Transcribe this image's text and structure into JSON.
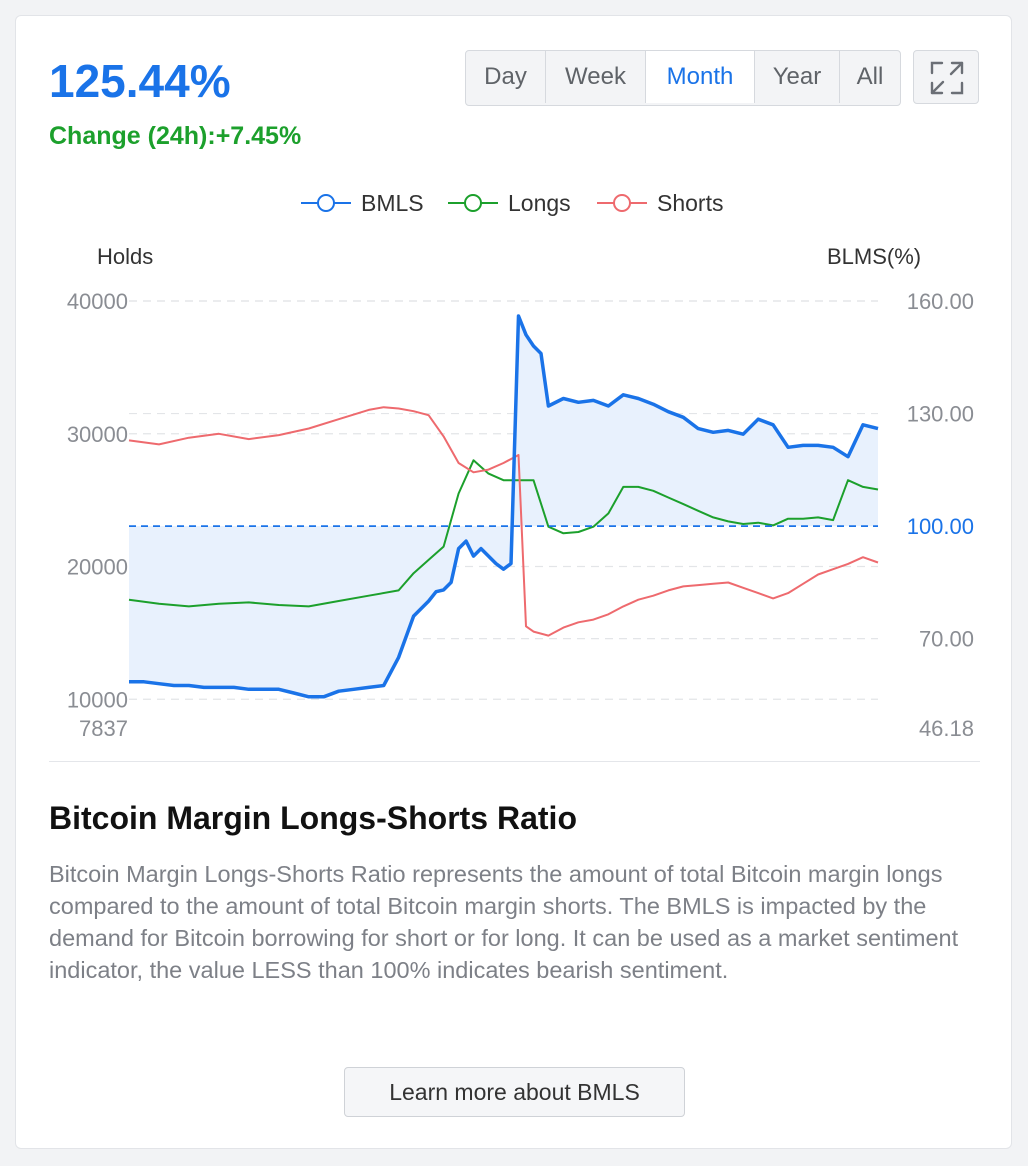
{
  "header": {
    "value": "125.44%",
    "change_label": "Change (24h):",
    "change_value": "+7.45%"
  },
  "range_buttons": [
    {
      "label": "Day",
      "active": false
    },
    {
      "label": "Week",
      "active": false
    },
    {
      "label": "Month",
      "active": true
    },
    {
      "label": "Year",
      "active": false
    },
    {
      "label": "All",
      "active": false
    }
  ],
  "colors": {
    "bmls": "#1a73e8",
    "longs": "#1ca02c",
    "shorts": "#ee6a6e",
    "accent": "#1a73e8",
    "area_fill": "#e8f1fd"
  },
  "icons": {
    "expand": "expand-arrows-icon"
  },
  "chart_data": {
    "type": "line",
    "legend": [
      "BMLS",
      "Longs",
      "Shorts"
    ],
    "legend_position": "top",
    "left_axis_title": "Holds",
    "right_axis_title": "BLMS(%)",
    "left_ticks": [
      "40000",
      "30000",
      "20000",
      "10000",
      "7837"
    ],
    "right_ticks": [
      "160.00",
      "130.00",
      "100.00",
      "70.00",
      "46.18"
    ],
    "left_range": [
      7837,
      40000
    ],
    "right_range": [
      46.18,
      160.0
    ],
    "reference_value": 100.0,
    "reference_label": "100.00",
    "grid": true,
    "series": [
      {
        "name": "BMLS",
        "axis": "right",
        "x": [
          0,
          2,
          4,
          6,
          8,
          10,
          12,
          14,
          16,
          18,
          20,
          22,
          24,
          26,
          28,
          30,
          32,
          34,
          36,
          38,
          40,
          41,
          42,
          43,
          44,
          45,
          46,
          47,
          48,
          49,
          50,
          51,
          52,
          53,
          54,
          55,
          56,
          58,
          60,
          62,
          64,
          66,
          68,
          70,
          72,
          74,
          76,
          78,
          80,
          82,
          84,
          86,
          88,
          90,
          92,
          94,
          96,
          98,
          100
        ],
        "values": [
          58.5,
          58.5,
          58.0,
          57.5,
          57.5,
          57.0,
          57.0,
          57.0,
          56.5,
          56.5,
          56.5,
          55.5,
          54.5,
          54.5,
          56.0,
          56.5,
          57.0,
          57.5,
          65.0,
          76.0,
          80.0,
          82.5,
          83.0,
          85.0,
          94.0,
          96.0,
          92.0,
          94.0,
          92.0,
          90.0,
          88.5,
          90.0,
          156.0,
          151.0,
          148.0,
          146.0,
          132.0,
          134.0,
          133.0,
          133.5,
          132.0,
          135.0,
          134.0,
          132.5,
          130.5,
          129.0,
          126.0,
          125.0,
          125.5,
          124.5,
          128.5,
          127.0,
          121.0,
          121.5,
          121.5,
          121.0,
          118.5,
          127.0,
          126.0
        ]
      },
      {
        "name": "Longs",
        "axis": "left",
        "x": [
          0,
          4,
          8,
          12,
          16,
          20,
          24,
          28,
          32,
          36,
          38,
          40,
          42,
          44,
          46,
          48,
          50,
          52,
          54,
          56,
          58,
          60,
          62,
          64,
          66,
          68,
          70,
          72,
          74,
          76,
          78,
          80,
          82,
          84,
          86,
          88,
          90,
          92,
          94,
          96,
          98,
          100
        ],
        "values": [
          17500,
          17200,
          17000,
          17200,
          17300,
          17100,
          17000,
          17400,
          17800,
          18200,
          19500,
          20500,
          21500,
          25500,
          28000,
          27000,
          26500,
          26500,
          26500,
          23000,
          22500,
          22600,
          23000,
          24000,
          26000,
          26000,
          25700,
          25200,
          24700,
          24200,
          23700,
          23400,
          23200,
          23300,
          23100,
          23600,
          23600,
          23700,
          23500,
          26500,
          26000,
          25800
        ]
      },
      {
        "name": "Shorts",
        "axis": "left",
        "x": [
          0,
          4,
          8,
          12,
          16,
          20,
          24,
          28,
          32,
          34,
          36,
          38,
          40,
          42,
          44,
          46,
          48,
          50,
          52,
          53,
          54,
          56,
          58,
          60,
          62,
          64,
          66,
          68,
          70,
          72,
          74,
          76,
          78,
          80,
          82,
          84,
          86,
          88,
          90,
          92,
          94,
          96,
          98,
          100
        ],
        "values": [
          29500,
          29200,
          29700,
          30000,
          29600,
          29900,
          30400,
          31100,
          31800,
          32000,
          31900,
          31700,
          31400,
          29800,
          27800,
          27100,
          27300,
          27800,
          28400,
          15500,
          15100,
          14800,
          15400,
          15800,
          16000,
          16400,
          17000,
          17500,
          17800,
          18200,
          18500,
          18600,
          18700,
          18800,
          18400,
          18000,
          17600,
          18000,
          18700,
          19400,
          19800,
          20200,
          20700,
          20300
        ]
      }
    ]
  },
  "description": {
    "title": "Bitcoin Margin Longs-Shorts Ratio",
    "text": "Bitcoin Margin Longs-Shorts Ratio represents the amount of total Bitcoin margin longs compared to the amount of total Bitcoin margin shorts. The BMLS is impacted by the demand for Bitcoin borrowing for short or for long. It can be used as a market sentiment indicator, the value LESS than 100% indicates bearish sentiment.",
    "button_label": "Learn more about BMLS"
  }
}
